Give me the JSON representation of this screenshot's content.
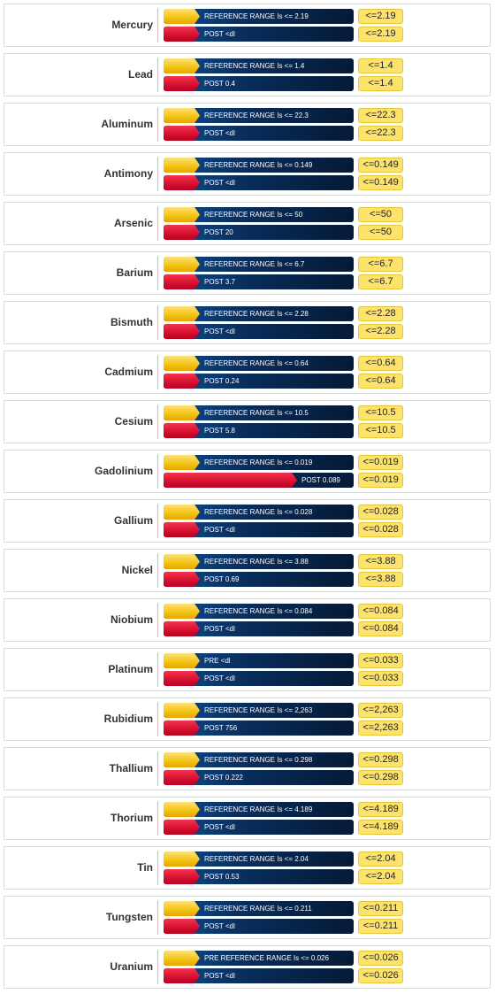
{
  "chart_data": {
    "type": "bar",
    "bar_scale_max": 0.1,
    "colors": {
      "reference": "#f5c518",
      "post": "#d50f2f",
      "track": "#082c5a",
      "pill": "#fde36b"
    },
    "rows": [
      {
        "metal": "Mercury",
        "ref_label": "REFERENCE RANGE Is <= 2.19",
        "ref_fill": 0.19,
        "limit": "<=2.19",
        "post_label": "POST <dl",
        "post_fill": 0.19,
        "post_limit": "<=2.19"
      },
      {
        "metal": "Lead",
        "ref_label": "REFERENCE RANGE Is <= 1.4",
        "ref_fill": 0.19,
        "limit": "<=1.4",
        "post_label": "POST 0.4",
        "post_fill": 0.19,
        "post_limit": "<=1.4"
      },
      {
        "metal": "Aluminum",
        "ref_label": "REFERENCE RANGE Is <= 22.3",
        "ref_fill": 0.19,
        "limit": "<=22.3",
        "post_label": "POST <dl",
        "post_fill": 0.19,
        "post_limit": "<=22.3"
      },
      {
        "metal": "Antimony",
        "ref_label": "REFERENCE RANGE Is <= 0.149",
        "ref_fill": 0.19,
        "limit": "<=0.149",
        "post_label": "POST <dl",
        "post_fill": 0.19,
        "post_limit": "<=0.149"
      },
      {
        "metal": "Arsenic",
        "ref_label": "REFERENCE RANGE Is <= 50",
        "ref_fill": 0.19,
        "limit": "<=50",
        "post_label": "POST 20",
        "post_fill": 0.19,
        "post_limit": "<=50"
      },
      {
        "metal": "Barium",
        "ref_label": "REFERENCE RANGE Is <= 6.7",
        "ref_fill": 0.19,
        "limit": "<=6.7",
        "post_label": "POST 3.7",
        "post_fill": 0.19,
        "post_limit": "<=6.7"
      },
      {
        "metal": "Bismuth",
        "ref_label": "REFERENCE RANGE Is <= 2.28",
        "ref_fill": 0.19,
        "limit": "<=2.28",
        "post_label": "POST <dl",
        "post_fill": 0.19,
        "post_limit": "<=2.28"
      },
      {
        "metal": "Cadmium",
        "ref_label": "REFERENCE RANGE Is <= 0.64",
        "ref_fill": 0.19,
        "limit": "<=0.64",
        "post_label": "POST 0.24",
        "post_fill": 0.19,
        "post_limit": "<=0.64"
      },
      {
        "metal": "Cesium",
        "ref_label": "REFERENCE RANGE Is <= 10.5",
        "ref_fill": 0.19,
        "limit": "<=10.5",
        "post_label": "POST 5.8",
        "post_fill": 0.19,
        "post_limit": "<=10.5"
      },
      {
        "metal": "Gadolinium",
        "ref_label": "REFERENCE RANGE Is <= 0.019",
        "ref_fill": 0.19,
        "limit": "<=0.019",
        "post_label": "POST 0.089",
        "post_fill": 0.7,
        "post_limit": "<=0.019"
      },
      {
        "metal": "Gallium",
        "ref_label": "REFERENCE RANGE Is <= 0.028",
        "ref_fill": 0.19,
        "limit": "<=0.028",
        "post_label": "POST <dl",
        "post_fill": 0.19,
        "post_limit": "<=0.028"
      },
      {
        "metal": "Nickel",
        "ref_label": "REFERENCE RANGE Is <= 3.88",
        "ref_fill": 0.19,
        "limit": "<=3.88",
        "post_label": "POST 0.69",
        "post_fill": 0.19,
        "post_limit": "<=3.88"
      },
      {
        "metal": "Niobium",
        "ref_label": "REFERENCE RANGE Is <= 0.084",
        "ref_fill": 0.19,
        "limit": "<=0.084",
        "post_label": "POST <dl",
        "post_fill": 0.19,
        "post_limit": "<=0.084"
      },
      {
        "metal": "Platinum",
        "ref_label": "PRE <dl",
        "ref_fill": 0.19,
        "limit": "<=0.033",
        "post_label": "POST <dl",
        "post_fill": 0.19,
        "post_limit": "<=0.033"
      },
      {
        "metal": "Rubidium",
        "ref_label": "REFERENCE RANGE Is <= 2,263",
        "ref_fill": 0.19,
        "limit": "<=2,263",
        "post_label": "POST 756",
        "post_fill": 0.19,
        "post_limit": "<=2,263"
      },
      {
        "metal": "Thallium",
        "ref_label": "REFERENCE RANGE Is <= 0.298",
        "ref_fill": 0.19,
        "limit": "<=0.298",
        "post_label": "POST 0.222",
        "post_fill": 0.19,
        "post_limit": "<=0.298"
      },
      {
        "metal": "Thorium",
        "ref_label": "REFERENCE RANGE Is <= 4.189",
        "ref_fill": 0.19,
        "limit": "<=4.189",
        "post_label": "POST <dl",
        "post_fill": 0.19,
        "post_limit": "<=4.189"
      },
      {
        "metal": "Tin",
        "ref_label": "REFERENCE RANGE Is <= 2.04",
        "ref_fill": 0.19,
        "limit": "<=2.04",
        "post_label": "POST 0.53",
        "post_fill": 0.19,
        "post_limit": "<=2.04"
      },
      {
        "metal": "Tungsten",
        "ref_label": "REFERENCE RANGE Is <= 0.211",
        "ref_fill": 0.19,
        "limit": "<=0.211",
        "post_label": "POST <dl",
        "post_fill": 0.19,
        "post_limit": "<=0.211"
      },
      {
        "metal": "Uranium",
        "ref_label": "PRE REFERENCE RANGE Is <= 0.026",
        "ref_fill": 0.19,
        "limit": "<=0.026",
        "post_label": "POST <dl",
        "post_fill": 0.19,
        "post_limit": "<=0.026"
      }
    ]
  }
}
